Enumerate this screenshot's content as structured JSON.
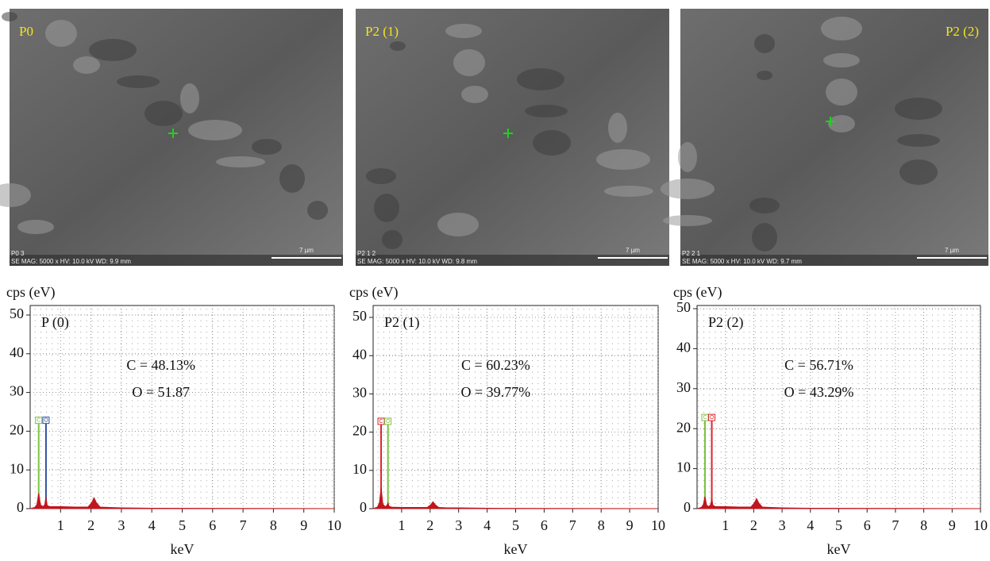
{
  "images": [
    {
      "label": "P0",
      "id": "P0 3",
      "info": "SE MAG: 5000 x HV: 10.0 kV WD: 9.9 mm",
      "scale": "7 µm"
    },
    {
      "label": "P2 (1)",
      "id": "P2 1 2",
      "info": "SE MAG: 5000 x HV: 10.0 kV WD: 9.8 mm",
      "scale": "7 µm"
    },
    {
      "label": "P2 (2)",
      "id": "P2 2 1",
      "info": "SE MAG: 5000 x HV: 10.0 kV WD: 9.7 mm",
      "scale": "7 µm"
    }
  ],
  "chart_data": [
    {
      "type": "area",
      "title": "P (0)",
      "ylabel": "cps (eV)",
      "xlabel": "keV",
      "color": "#c0161d",
      "x": [
        0,
        0.15,
        0.22,
        0.28,
        0.34,
        0.42,
        0.48,
        0.52,
        0.56,
        0.65,
        1.0,
        1.5,
        1.9,
        2.02,
        2.1,
        2.18,
        2.3,
        2.6,
        3,
        4,
        10
      ],
      "values": [
        0,
        0.3,
        1,
        4,
        1,
        0.5,
        1,
        3,
        0.8,
        0.5,
        0.5,
        0.4,
        0.4,
        1.5,
        2.8,
        1.5,
        0.4,
        0.3,
        0.2,
        0.1,
        0
      ],
      "markers": [
        {
          "label": "C",
          "x": 0.28,
          "height": 22,
          "color": "#7dc242"
        },
        {
          "label": "O",
          "x": 0.52,
          "height": 22,
          "color": "#3050a0"
        }
      ],
      "annotations": [
        "C = 48.13%",
        "O = 51.87"
      ],
      "xlim": [
        0,
        10
      ],
      "xticks": [
        1,
        2,
        3,
        4,
        5,
        6,
        7,
        8,
        9,
        10
      ],
      "ylim": [
        0,
        50
      ],
      "yticks": [
        0,
        10,
        20,
        30,
        40,
        50
      ],
      "grid": true
    },
    {
      "type": "area",
      "title": "P2 (1)",
      "ylabel": "cps (eV)",
      "xlabel": "keV",
      "color": "#c0161d",
      "x": [
        0,
        0.15,
        0.22,
        0.28,
        0.34,
        0.42,
        0.48,
        0.52,
        0.56,
        0.65,
        1.0,
        1.5,
        1.9,
        2.02,
        2.1,
        2.18,
        2.3,
        2.6,
        3,
        4,
        10
      ],
      "values": [
        0,
        0.4,
        1.5,
        5.5,
        1.2,
        0.5,
        0.8,
        1.5,
        0.6,
        0.4,
        0.3,
        0.3,
        0.3,
        1,
        1.8,
        1,
        0.3,
        0.2,
        0.2,
        0.1,
        0
      ],
      "markers": [
        {
          "label": "C",
          "x": 0.28,
          "height": 22,
          "color": "#d9252a"
        },
        {
          "label": "O",
          "x": 0.52,
          "height": 22,
          "color": "#7dc242"
        }
      ],
      "annotations": [
        "C = 60.23%",
        "O = 39.77%"
      ],
      "xlim": [
        0,
        10
      ],
      "xticks": [
        1,
        2,
        3,
        4,
        5,
        6,
        7,
        8,
        9,
        10
      ],
      "ylim": [
        0,
        50
      ],
      "yticks": [
        0,
        10,
        20,
        30,
        40,
        50
      ],
      "grid": true
    },
    {
      "type": "area",
      "title": "P2 (2)",
      "ylabel": "cps (eV)",
      "xlabel": "keV",
      "color": "#c0161d",
      "x": [
        0,
        0.15,
        0.22,
        0.28,
        0.34,
        0.42,
        0.48,
        0.52,
        0.56,
        0.65,
        1.0,
        1.5,
        1.9,
        2.02,
        2.1,
        2.18,
        2.3,
        2.6,
        3,
        4,
        10
      ],
      "values": [
        0,
        0.3,
        1,
        3,
        0.8,
        0.5,
        1,
        2.5,
        0.8,
        0.5,
        0.5,
        0.4,
        0.4,
        1.4,
        2.5,
        1.4,
        0.4,
        0.3,
        0.2,
        0.1,
        0
      ],
      "markers": [
        {
          "label": "C",
          "x": 0.28,
          "height": 22,
          "color": "#7dc242"
        },
        {
          "label": "O",
          "x": 0.52,
          "height": 22,
          "color": "#d9252a"
        }
      ],
      "annotations": [
        "C = 56.71%",
        "O = 43.29%"
      ],
      "xlim": [
        0,
        10
      ],
      "xticks": [
        1,
        2,
        3,
        4,
        5,
        6,
        7,
        8,
        9,
        10
      ],
      "ylim": [
        0,
        50
      ],
      "yticks": [
        0,
        10,
        20,
        30,
        40,
        50
      ],
      "grid": true
    }
  ]
}
